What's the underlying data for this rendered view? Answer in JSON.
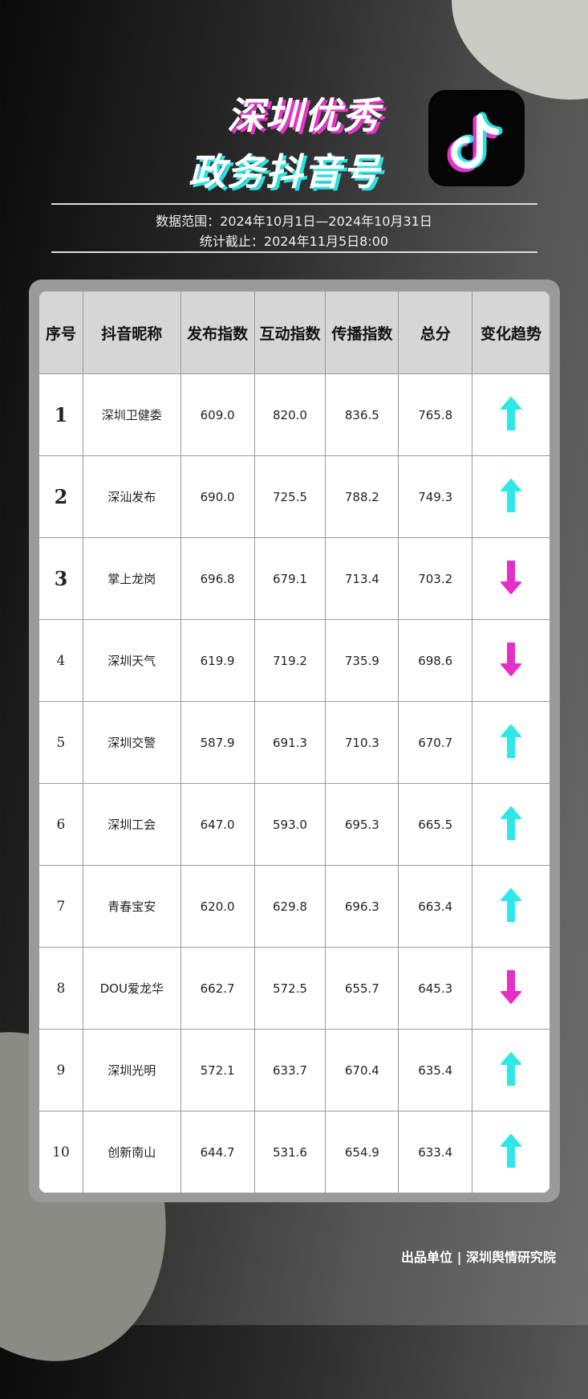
{
  "header": {
    "title_line1": "深圳优秀",
    "title_line2": "政务抖音号",
    "logo": "douyin-logo",
    "date_range": "数据范围：2024年10月1日—2024年10月31日",
    "cutoff": "统计截止：2024年11月5日8:00"
  },
  "colors": {
    "up": "#2ee8e8",
    "down": "#e62ec8",
    "accent_pink": "#e535c8",
    "accent_cyan": "#27e3e3"
  },
  "table": {
    "columns": [
      "序号",
      "抖音昵称",
      "发布指数",
      "互动指数",
      "传播指数",
      "总分",
      "变化趋势"
    ],
    "rows": [
      {
        "rank": "1",
        "name": "深圳卫健委",
        "publish": "609.0",
        "interact": "820.0",
        "spread": "836.5",
        "total": "765.8",
        "trend": "up"
      },
      {
        "rank": "2",
        "name": "深汕发布",
        "publish": "690.0",
        "interact": "725.5",
        "spread": "788.2",
        "total": "749.3",
        "trend": "up"
      },
      {
        "rank": "3",
        "name": "掌上龙岗",
        "publish": "696.8",
        "interact": "679.1",
        "spread": "713.4",
        "total": "703.2",
        "trend": "down"
      },
      {
        "rank": "4",
        "name": "深圳天气",
        "publish": "619.9",
        "interact": "719.2",
        "spread": "735.9",
        "total": "698.6",
        "trend": "down"
      },
      {
        "rank": "5",
        "name": "深圳交警",
        "publish": "587.9",
        "interact": "691.3",
        "spread": "710.3",
        "total": "670.7",
        "trend": "up"
      },
      {
        "rank": "6",
        "name": "深圳工会",
        "publish": "647.0",
        "interact": "593.0",
        "spread": "695.3",
        "total": "665.5",
        "trend": "up"
      },
      {
        "rank": "7",
        "name": "青春宝安",
        "publish": "620.0",
        "interact": "629.8",
        "spread": "696.3",
        "total": "663.4",
        "trend": "up"
      },
      {
        "rank": "8",
        "name": "DOU爱龙华",
        "publish": "662.7",
        "interact": "572.5",
        "spread": "655.7",
        "total": "645.3",
        "trend": "down"
      },
      {
        "rank": "9",
        "name": "深圳光明",
        "publish": "572.1",
        "interact": "633.7",
        "spread": "670.4",
        "total": "635.4",
        "trend": "up"
      },
      {
        "rank": "10",
        "name": "创新南山",
        "publish": "644.7",
        "interact": "531.6",
        "spread": "654.9",
        "total": "633.4",
        "trend": "up"
      }
    ]
  },
  "footer": {
    "text": "出品单位 | 深圳舆情研究院"
  }
}
